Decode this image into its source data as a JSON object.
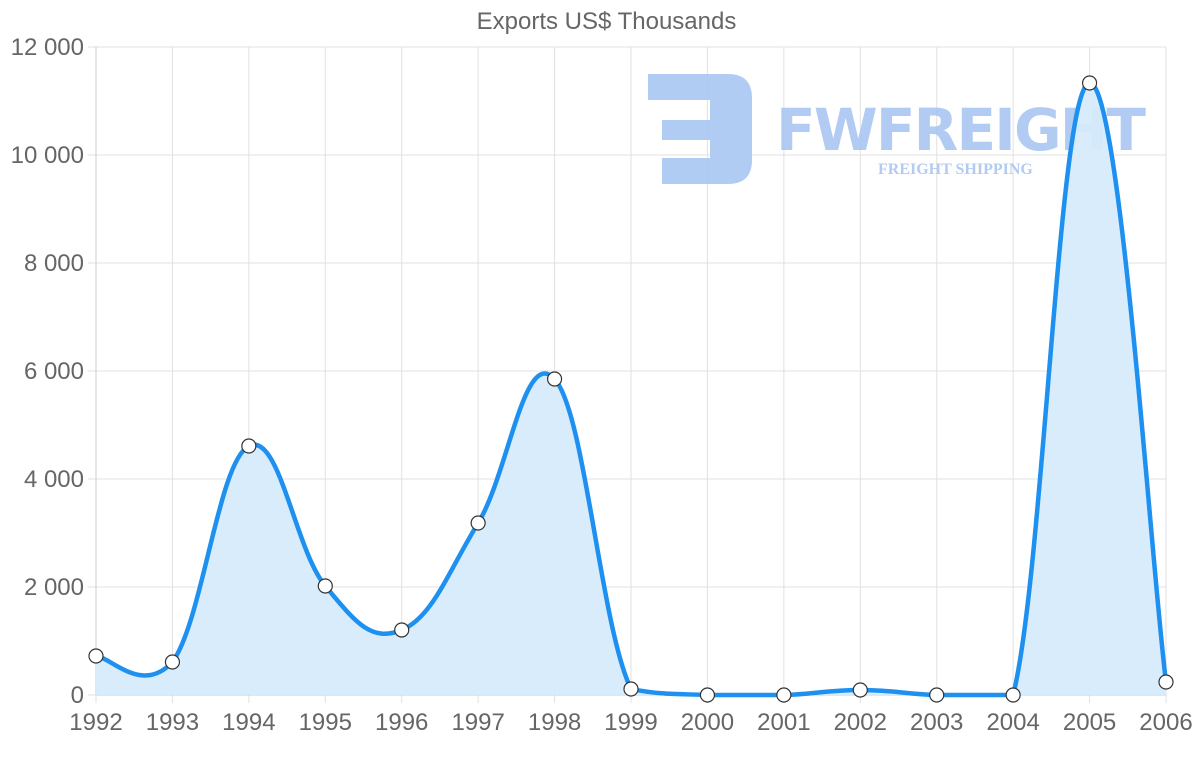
{
  "chart_data": {
    "type": "line",
    "title": "Exports US$ Thousands",
    "xlabel": "",
    "ylabel": "",
    "categories": [
      "1992",
      "1993",
      "1994",
      "1995",
      "1996",
      "1997",
      "1998",
      "1999",
      "2000",
      "2001",
      "2002",
      "2003",
      "2004",
      "2005",
      "2006"
    ],
    "series": [
      {
        "name": "Exports US$ Thousands",
        "values": [
          722,
          611,
          4611,
          2019,
          1204,
          3185,
          5852,
          111,
          0,
          0,
          93,
          0,
          0,
          11333,
          241
        ],
        "color": "#1e90f0",
        "fill": "#d6ebfb",
        "filled": true
      }
    ],
    "ylim": [
      0,
      12000
    ],
    "yticks": [
      0,
      2000,
      4000,
      6000,
      8000,
      10000,
      12000
    ],
    "ytick_labels": [
      "0",
      "2 000",
      "4 000",
      "6 000",
      "8 000",
      "10 000",
      "12 000"
    ],
    "grid": true,
    "legend": "none"
  },
  "watermark": {
    "brand": "FWFREIGHT",
    "tagline": "FREIGHT SHIPPING",
    "color": "#a9c6f2"
  }
}
